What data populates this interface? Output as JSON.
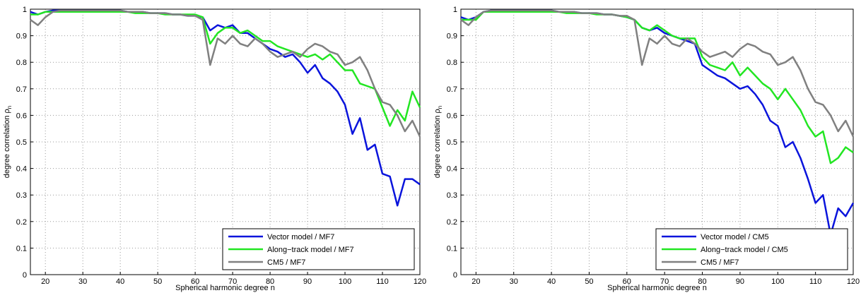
{
  "chart_data": [
    {
      "type": "line",
      "xlabel": "Spherical harmonic degree n",
      "ylabel": "degree correlation ρ",
      "ylabel_subscript": "n",
      "xlim": [
        16,
        120
      ],
      "ylim": [
        0,
        1
      ],
      "xticks": [
        20,
        30,
        40,
        50,
        60,
        70,
        80,
        90,
        100,
        110,
        120
      ],
      "yticks": [
        0,
        0.1,
        0.2,
        0.3,
        0.4,
        0.5,
        0.6,
        0.7,
        0.8,
        0.9,
        1
      ],
      "grid": true,
      "legend": "lower right",
      "x": [
        16,
        18,
        20,
        22,
        24,
        26,
        28,
        30,
        32,
        34,
        36,
        38,
        40,
        42,
        44,
        46,
        48,
        50,
        52,
        54,
        56,
        58,
        60,
        62,
        64,
        66,
        68,
        70,
        72,
        74,
        76,
        78,
        80,
        82,
        84,
        86,
        88,
        90,
        92,
        94,
        96,
        98,
        100,
        102,
        104,
        106,
        108,
        110,
        112,
        114,
        116,
        118,
        120
      ],
      "series": [
        {
          "name": "Vector model / MF7",
          "color": "#0a14dc",
          "values": [
            0.99,
            0.98,
            0.99,
            0.995,
            0.995,
            0.995,
            0.995,
            0.995,
            0.995,
            0.995,
            0.995,
            0.995,
            0.995,
            0.99,
            0.99,
            0.99,
            0.985,
            0.985,
            0.985,
            0.98,
            0.98,
            0.975,
            0.975,
            0.97,
            0.92,
            0.94,
            0.93,
            0.94,
            0.91,
            0.91,
            0.89,
            0.87,
            0.85,
            0.84,
            0.82,
            0.83,
            0.8,
            0.76,
            0.79,
            0.74,
            0.72,
            0.69,
            0.64,
            0.53,
            0.59,
            0.47,
            0.49,
            0.38,
            0.37,
            0.26,
            0.36,
            0.36,
            0.34
          ]
        },
        {
          "name": "Along−track model / MF7",
          "color": "#22e622",
          "values": [
            0.98,
            0.98,
            0.99,
            0.99,
            0.99,
            0.99,
            0.99,
            0.99,
            0.99,
            0.99,
            0.99,
            0.99,
            0.99,
            0.99,
            0.985,
            0.985,
            0.985,
            0.985,
            0.98,
            0.98,
            0.98,
            0.98,
            0.98,
            0.97,
            0.87,
            0.91,
            0.93,
            0.93,
            0.91,
            0.92,
            0.9,
            0.88,
            0.88,
            0.86,
            0.85,
            0.84,
            0.83,
            0.82,
            0.83,
            0.81,
            0.83,
            0.8,
            0.77,
            0.77,
            0.72,
            0.71,
            0.7,
            0.63,
            0.56,
            0.62,
            0.58,
            0.69,
            0.63
          ]
        },
        {
          "name": "CM5 / MF7",
          "color": "#808080",
          "values": [
            0.96,
            0.94,
            0.97,
            0.99,
            0.995,
            0.995,
            0.995,
            0.995,
            0.995,
            0.995,
            0.995,
            0.995,
            0.995,
            0.99,
            0.99,
            0.99,
            0.985,
            0.985,
            0.985,
            0.98,
            0.98,
            0.975,
            0.975,
            0.96,
            0.79,
            0.89,
            0.87,
            0.9,
            0.87,
            0.86,
            0.89,
            0.87,
            0.84,
            0.82,
            0.83,
            0.84,
            0.82,
            0.85,
            0.87,
            0.86,
            0.84,
            0.83,
            0.79,
            0.8,
            0.82,
            0.77,
            0.7,
            0.65,
            0.64,
            0.6,
            0.54,
            0.58,
            0.52
          ]
        }
      ]
    },
    {
      "type": "line",
      "xlabel": "Spherical harmonic degree n",
      "ylabel": "degree correlation ρ",
      "ylabel_subscript": "n",
      "xlim": [
        16,
        120
      ],
      "ylim": [
        0,
        1
      ],
      "xticks": [
        20,
        30,
        40,
        50,
        60,
        70,
        80,
        90,
        100,
        110,
        120
      ],
      "yticks": [
        0,
        0.1,
        0.2,
        0.3,
        0.4,
        0.5,
        0.6,
        0.7,
        0.8,
        0.9,
        1
      ],
      "grid": true,
      "legend": "lower right",
      "x": [
        16,
        18,
        20,
        22,
        24,
        26,
        28,
        30,
        32,
        34,
        36,
        38,
        40,
        42,
        44,
        46,
        48,
        50,
        52,
        54,
        56,
        58,
        60,
        62,
        64,
        66,
        68,
        70,
        72,
        74,
        76,
        78,
        80,
        82,
        84,
        86,
        88,
        90,
        92,
        94,
        96,
        98,
        100,
        102,
        104,
        106,
        108,
        110,
        112,
        114,
        116,
        118,
        120
      ],
      "series": [
        {
          "name": "Vector model / CM5",
          "color": "#0a14dc",
          "values": [
            0.97,
            0.96,
            0.97,
            0.99,
            0.995,
            0.995,
            0.995,
            0.995,
            0.995,
            0.995,
            0.995,
            0.995,
            0.995,
            0.99,
            0.99,
            0.99,
            0.985,
            0.985,
            0.985,
            0.98,
            0.98,
            0.975,
            0.97,
            0.96,
            0.93,
            0.92,
            0.93,
            0.91,
            0.9,
            0.89,
            0.88,
            0.87,
            0.79,
            0.77,
            0.75,
            0.74,
            0.72,
            0.7,
            0.71,
            0.68,
            0.64,
            0.58,
            0.56,
            0.48,
            0.5,
            0.44,
            0.36,
            0.27,
            0.3,
            0.15,
            0.25,
            0.22,
            0.27
          ]
        },
        {
          "name": "Along−track model / CM5",
          "color": "#22e622",
          "values": [
            0.96,
            0.96,
            0.96,
            0.99,
            0.99,
            0.99,
            0.99,
            0.99,
            0.99,
            0.99,
            0.99,
            0.99,
            0.99,
            0.99,
            0.985,
            0.985,
            0.985,
            0.985,
            0.98,
            0.98,
            0.98,
            0.975,
            0.97,
            0.96,
            0.93,
            0.92,
            0.94,
            0.92,
            0.9,
            0.89,
            0.89,
            0.89,
            0.82,
            0.79,
            0.78,
            0.77,
            0.8,
            0.75,
            0.78,
            0.75,
            0.72,
            0.7,
            0.66,
            0.7,
            0.66,
            0.62,
            0.56,
            0.52,
            0.54,
            0.42,
            0.44,
            0.48,
            0.46
          ]
        },
        {
          "name": "CM5 / MF7",
          "color": "#808080",
          "values": [
            0.96,
            0.94,
            0.97,
            0.99,
            0.995,
            0.995,
            0.995,
            0.995,
            0.995,
            0.995,
            0.995,
            0.995,
            0.995,
            0.99,
            0.99,
            0.99,
            0.985,
            0.985,
            0.985,
            0.98,
            0.98,
            0.975,
            0.975,
            0.96,
            0.79,
            0.89,
            0.87,
            0.9,
            0.87,
            0.86,
            0.89,
            0.87,
            0.84,
            0.82,
            0.83,
            0.84,
            0.82,
            0.85,
            0.87,
            0.86,
            0.84,
            0.83,
            0.79,
            0.8,
            0.82,
            0.77,
            0.7,
            0.65,
            0.64,
            0.6,
            0.54,
            0.58,
            0.52
          ]
        }
      ]
    }
  ]
}
